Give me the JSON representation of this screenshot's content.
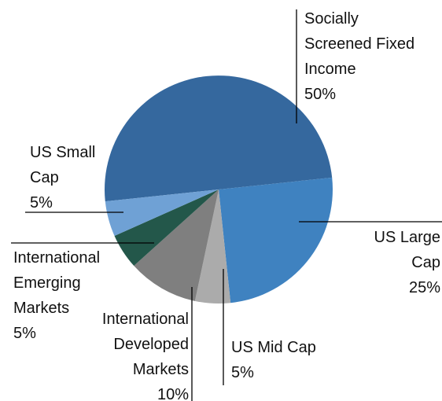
{
  "chart_data": {
    "type": "pie",
    "categories": [
      "Socially Screened Fixed Income",
      "US Large Cap",
      "US Mid Cap",
      "International Developed Markets",
      "International Emerging Markets",
      "US Small Cap"
    ],
    "values": [
      50,
      25,
      5,
      10,
      5,
      5
    ],
    "value_labels": [
      "50%",
      "25%",
      "5%",
      "10%",
      "5%",
      "5%"
    ],
    "colors": [
      "#35689e",
      "#3f82c0",
      "#ababab",
      "#7f7f7f",
      "#23574a",
      "#6fa1d5"
    ]
  }
}
